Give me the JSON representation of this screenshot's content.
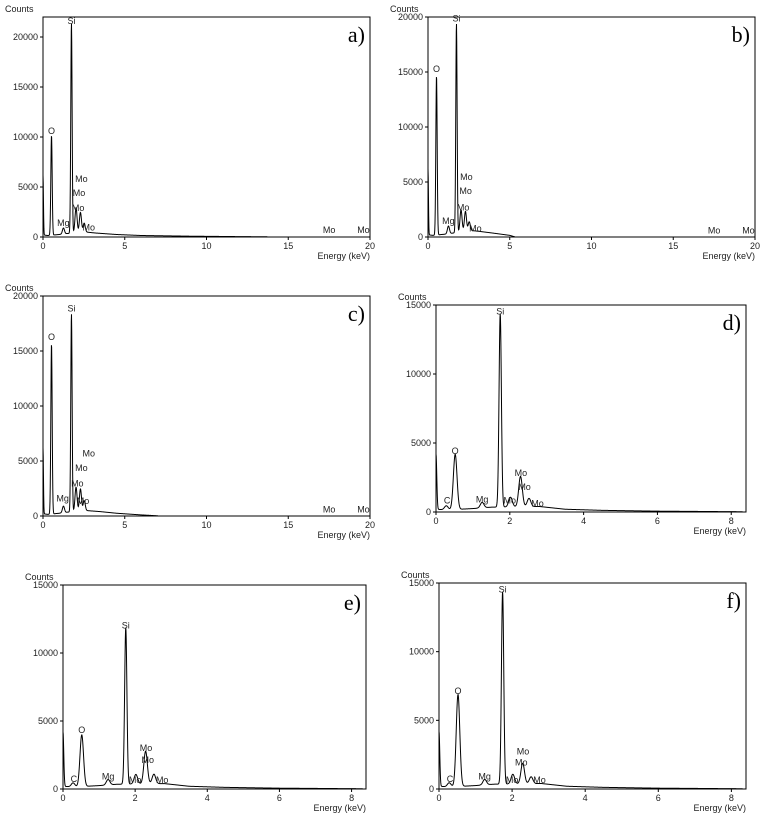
{
  "chart_data": [
    {
      "type": "line",
      "panel_label": "a)",
      "ylabel": "Counts",
      "xlabel": "Energy (keV)",
      "xlim": [
        0,
        20
      ],
      "ylim": [
        0,
        22000
      ],
      "xticks": [
        "0",
        "5",
        "10",
        "15",
        "20"
      ],
      "yticks": [
        "0",
        "5000",
        "10000",
        "15000",
        "20000"
      ],
      "peaks": [
        {
          "x": 0.0,
          "y": 6000
        },
        {
          "x": 0.52,
          "y": 10000
        },
        {
          "x": 1.25,
          "y": 600
        },
        {
          "x": 1.74,
          "y": 21000
        },
        {
          "x": 2.02,
          "y": 2500
        },
        {
          "x": 2.29,
          "y": 2000
        },
        {
          "x": 2.52,
          "y": 900
        }
      ],
      "tail": [
        [
          2.6,
          500
        ],
        [
          3.2,
          400
        ],
        [
          4.5,
          250
        ],
        [
          6,
          150
        ],
        [
          9,
          80
        ],
        [
          12,
          40
        ],
        [
          13.7,
          20
        ]
      ],
      "annotations": [
        {
          "text": "Si",
          "x": 1.74,
          "y": 21300
        },
        {
          "text": "O",
          "x": 0.52,
          "y": 10300
        },
        {
          "text": "Mo",
          "x": 2.35,
          "y": 5500
        },
        {
          "text": "Mo",
          "x": 2.2,
          "y": 4100
        },
        {
          "text": "Mo",
          "x": 2.15,
          "y": 2600
        },
        {
          "text": "Mg",
          "x": 1.25,
          "y": 1100
        },
        {
          "text": "Mo",
          "x": 2.8,
          "y": 650
        },
        {
          "text": "Mo",
          "x": 17.5,
          "y": 400
        },
        {
          "text": "Mo",
          "x": 19.6,
          "y": 400
        }
      ]
    },
    {
      "type": "line",
      "panel_label": "b)",
      "ylabel": "Counts",
      "xlabel": "Energy (keV)",
      "xlim": [
        0,
        20
      ],
      "ylim": [
        0,
        20000
      ],
      "xticks": [
        "0",
        "5",
        "10",
        "15",
        "20"
      ],
      "yticks": [
        "0",
        "5000",
        "10000",
        "15000",
        "20000"
      ],
      "peaks": [
        {
          "x": 0.0,
          "y": 6000
        },
        {
          "x": 0.52,
          "y": 14500
        },
        {
          "x": 1.25,
          "y": 700
        },
        {
          "x": 1.74,
          "y": 19000
        },
        {
          "x": 2.02,
          "y": 2000
        },
        {
          "x": 2.29,
          "y": 1800
        },
        {
          "x": 2.52,
          "y": 800
        }
      ],
      "tail": [
        [
          2.6,
          600
        ],
        [
          3.2,
          500
        ],
        [
          4.0,
          350
        ],
        [
          5.0,
          150
        ],
        [
          5.3,
          20
        ]
      ],
      "annotations": [
        {
          "text": "Si",
          "x": 1.74,
          "y": 19600
        },
        {
          "text": "O",
          "x": 0.52,
          "y": 15000
        },
        {
          "text": "Mo",
          "x": 2.35,
          "y": 5200
        },
        {
          "text": "Mo",
          "x": 2.3,
          "y": 3900
        },
        {
          "text": "Mo",
          "x": 2.15,
          "y": 2400
        },
        {
          "text": "Mg",
          "x": 1.25,
          "y": 1200
        },
        {
          "text": "Mo",
          "x": 2.9,
          "y": 500
        },
        {
          "text": "Mo",
          "x": 17.5,
          "y": 300
        },
        {
          "text": "Mo",
          "x": 19.6,
          "y": 300
        }
      ]
    },
    {
      "type": "line",
      "panel_label": "c)",
      "ylabel": "Counts",
      "xlabel": "Energy (keV)",
      "xlim": [
        0,
        20
      ],
      "ylim": [
        0,
        20000
      ],
      "xticks": [
        "0",
        "5",
        "10",
        "15",
        "20"
      ],
      "yticks": [
        "0",
        "5000",
        "10000",
        "15000",
        "20000"
      ],
      "peaks": [
        {
          "x": 0.0,
          "y": 6000
        },
        {
          "x": 0.52,
          "y": 15500
        },
        {
          "x": 1.25,
          "y": 600
        },
        {
          "x": 1.74,
          "y": 18000
        },
        {
          "x": 2.02,
          "y": 2200
        },
        {
          "x": 2.29,
          "y": 2000
        },
        {
          "x": 2.52,
          "y": 900
        }
      ],
      "tail": [
        [
          2.6,
          500
        ],
        [
          3.5,
          400
        ],
        [
          4.5,
          250
        ],
        [
          6,
          100
        ],
        [
          7.0,
          20
        ]
      ],
      "annotations": [
        {
          "text": "Si",
          "x": 1.74,
          "y": 18600
        },
        {
          "text": "O",
          "x": 0.52,
          "y": 16000
        },
        {
          "text": "Mo",
          "x": 2.8,
          "y": 5400
        },
        {
          "text": "Mo",
          "x": 2.35,
          "y": 4100
        },
        {
          "text": "Mo",
          "x": 2.1,
          "y": 2700
        },
        {
          "text": "Mg",
          "x": 1.2,
          "y": 1300
        },
        {
          "text": "Mo",
          "x": 2.45,
          "y": 1100
        },
        {
          "text": "Mo",
          "x": 17.5,
          "y": 300
        },
        {
          "text": "Mo",
          "x": 19.6,
          "y": 300
        }
      ]
    },
    {
      "type": "line",
      "panel_label": "d)",
      "ylabel": "Counts",
      "xlabel": "Energy (keV)",
      "xlim": [
        0,
        8.4
      ],
      "ylim": [
        0,
        15000
      ],
      "xticks": [
        "0",
        "2",
        "4",
        "6",
        "8"
      ],
      "yticks": [
        "0",
        "5000",
        "10000",
        "15000"
      ],
      "peaks": [
        {
          "x": 0.0,
          "y": 4000
        },
        {
          "x": 0.28,
          "y": 300
        },
        {
          "x": 0.52,
          "y": 4000
        },
        {
          "x": 1.25,
          "y": 400
        },
        {
          "x": 1.74,
          "y": 14000
        },
        {
          "x": 2.02,
          "y": 700
        },
        {
          "x": 2.29,
          "y": 2200
        },
        {
          "x": 2.52,
          "y": 600
        }
      ],
      "tail": [
        [
          2.8,
          400
        ],
        [
          3.5,
          200
        ],
        [
          4.5,
          120
        ],
        [
          6,
          60
        ],
        [
          8.3,
          20
        ]
      ],
      "annotations": [
        {
          "text": "Si",
          "x": 1.74,
          "y": 14300
        },
        {
          "text": "O",
          "x": 0.52,
          "y": 4200
        },
        {
          "text": "Mo",
          "x": 2.3,
          "y": 2600
        },
        {
          "text": "Mo",
          "x": 2.4,
          "y": 1600
        },
        {
          "text": "Mg",
          "x": 1.25,
          "y": 700
        },
        {
          "text": "Mo",
          "x": 2.0,
          "y": 600
        },
        {
          "text": "Mo",
          "x": 2.75,
          "y": 400
        },
        {
          "text": "C",
          "x": 0.3,
          "y": 600
        }
      ]
    },
    {
      "type": "line",
      "panel_label": "e)",
      "ylabel": "Counts",
      "xlabel": "Energy (keV)",
      "xlim": [
        0,
        8.4
      ],
      "ylim": [
        0,
        15000
      ],
      "xticks": [
        "0",
        "2",
        "4",
        "6",
        "8"
      ],
      "yticks": [
        "0",
        "5000",
        "10000",
        "15000"
      ],
      "peaks": [
        {
          "x": 0.0,
          "y": 4000
        },
        {
          "x": 0.28,
          "y": 300
        },
        {
          "x": 0.52,
          "y": 3800
        },
        {
          "x": 1.25,
          "y": 400
        },
        {
          "x": 1.74,
          "y": 11500
        },
        {
          "x": 2.02,
          "y": 700
        },
        {
          "x": 2.29,
          "y": 2400
        },
        {
          "x": 2.52,
          "y": 700
        }
      ],
      "tail": [
        [
          2.8,
          400
        ],
        [
          3.5,
          200
        ],
        [
          4.5,
          120
        ],
        [
          6,
          60
        ],
        [
          8.3,
          20
        ]
      ],
      "annotations": [
        {
          "text": "Si",
          "x": 1.74,
          "y": 11800
        },
        {
          "text": "O",
          "x": 0.52,
          "y": 4100
        },
        {
          "text": "Mo",
          "x": 2.3,
          "y": 2800
        },
        {
          "text": "Mo",
          "x": 2.35,
          "y": 1900
        },
        {
          "text": "Mg",
          "x": 1.25,
          "y": 700
        },
        {
          "text": "Mo",
          "x": 2.0,
          "y": 450
        },
        {
          "text": "Mo",
          "x": 2.75,
          "y": 450
        },
        {
          "text": "C",
          "x": 0.3,
          "y": 500
        }
      ]
    },
    {
      "type": "line",
      "panel_label": "f)",
      "ylabel": "Counts",
      "xlabel": "Energy (keV)",
      "xlim": [
        0,
        8.4
      ],
      "ylim": [
        0,
        15000
      ],
      "xticks": [
        "0",
        "2",
        "4",
        "6",
        "8"
      ],
      "yticks": [
        "0",
        "5000",
        "10000",
        "15000"
      ],
      "peaks": [
        {
          "x": 0.0,
          "y": 4000
        },
        {
          "x": 0.28,
          "y": 300
        },
        {
          "x": 0.52,
          "y": 6700
        },
        {
          "x": 1.25,
          "y": 400
        },
        {
          "x": 1.74,
          "y": 14000
        },
        {
          "x": 2.02,
          "y": 700
        },
        {
          "x": 2.29,
          "y": 1500
        },
        {
          "x": 2.52,
          "y": 500
        }
      ],
      "tail": [
        [
          2.8,
          400
        ],
        [
          3.5,
          200
        ],
        [
          4.5,
          120
        ],
        [
          6,
          60
        ],
        [
          8.3,
          20
        ]
      ],
      "annotations": [
        {
          "text": "Si",
          "x": 1.74,
          "y": 14300
        },
        {
          "text": "O",
          "x": 0.52,
          "y": 6900
        },
        {
          "text": "Mo",
          "x": 2.3,
          "y": 2500
        },
        {
          "text": "Mo",
          "x": 2.25,
          "y": 1700
        },
        {
          "text": "Mg",
          "x": 1.25,
          "y": 700
        },
        {
          "text": "Mo",
          "x": 2.0,
          "y": 450
        },
        {
          "text": "Mo",
          "x": 2.75,
          "y": 450
        },
        {
          "text": "C",
          "x": 0.3,
          "y": 500
        }
      ]
    }
  ]
}
